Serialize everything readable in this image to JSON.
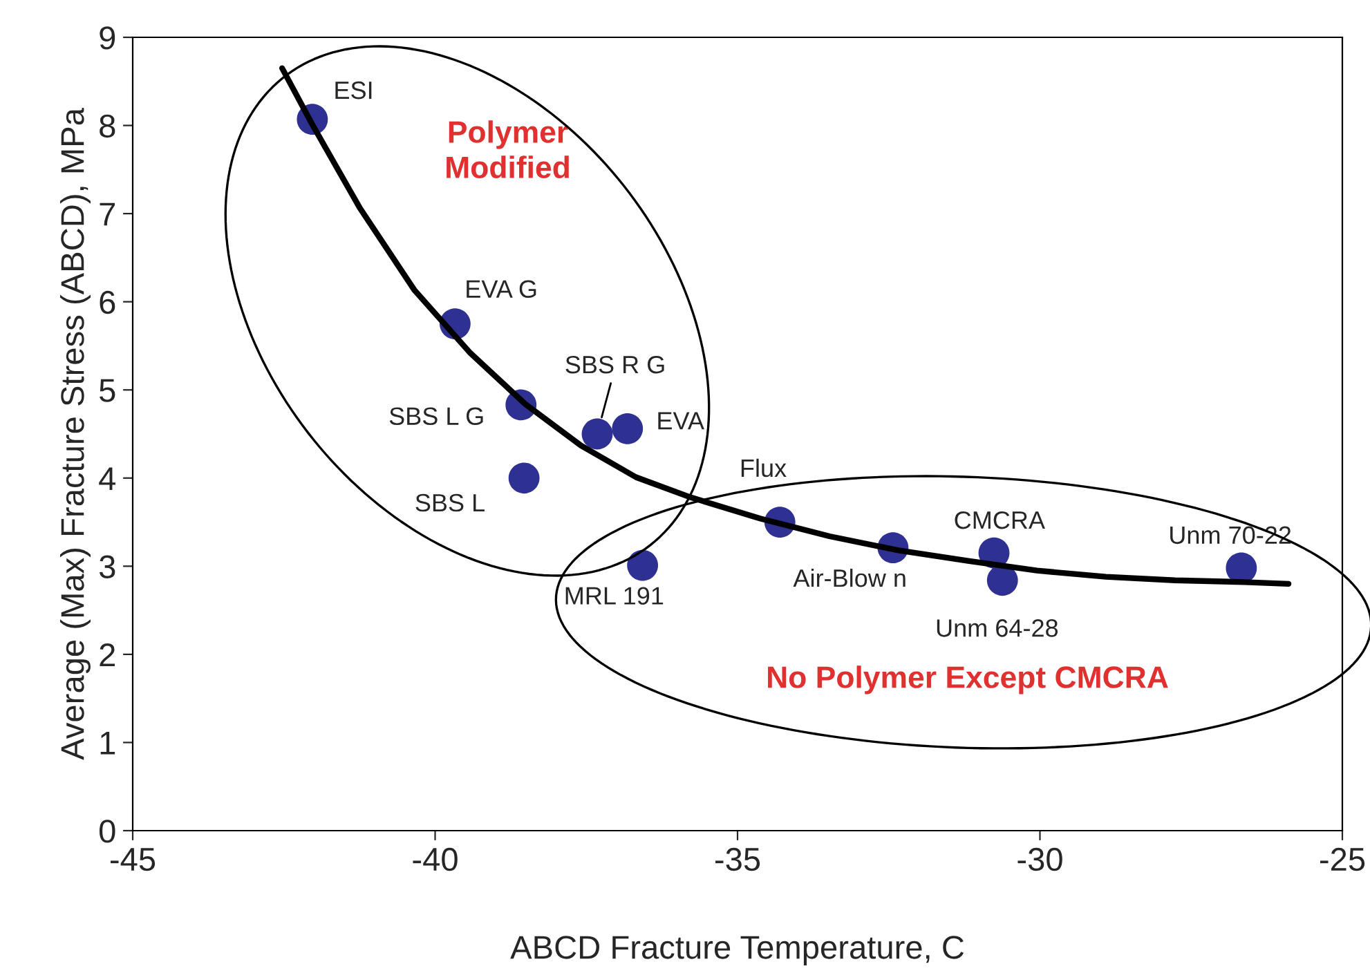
{
  "chart_data": {
    "type": "scatter",
    "xlabel": "ABCD Fracture Temperature, C",
    "ylabel": "Average (Max) Fracture Stress (ABCD), MPa",
    "xlim": [
      -45,
      -25
    ],
    "ylim": [
      0,
      9
    ],
    "xticks": [
      -45,
      -40,
      -35,
      -30,
      -25
    ],
    "yticks": [
      0,
      1,
      2,
      3,
      4,
      5,
      6,
      7,
      8,
      9
    ],
    "grid": false,
    "legend": false,
    "marker": "circle",
    "series": [
      {
        "color": "#2e3192",
        "x": [
          -42.03,
          -39.67,
          -38.58,
          -38.53,
          -37.32,
          -36.82,
          -36.57,
          -34.3,
          -32.43,
          -30.76,
          -30.62,
          -26.67
        ],
        "values": [
          8.07,
          5.75,
          4.83,
          4.0,
          4.5,
          4.56,
          3.01,
          3.5,
          3.21,
          3.15,
          2.84,
          2.98
        ]
      },
      {
        "type": "line",
        "color": "#000000",
        "line_style": "solid",
        "marker": "none",
        "x": [
          -42.53,
          -42.03,
          -41.25,
          -40.34,
          -39.42,
          -38.51,
          -37.59,
          -36.68,
          -35.77,
          -34.62,
          -33.48,
          -32.34,
          -31.19,
          -30.05,
          -28.91,
          -27.77,
          -26.62,
          -25.89
        ],
        "values": [
          8.65,
          8.01,
          7.07,
          6.13,
          5.42,
          4.84,
          4.37,
          4.01,
          3.78,
          3.54,
          3.34,
          3.18,
          3.06,
          2.95,
          2.88,
          2.84,
          2.82,
          2.8
        ]
      }
    ],
    "annotations": [
      {
        "text": "ESI",
        "x": -42.03,
        "y": 8.07
      },
      {
        "text": "EVA G",
        "x": -39.67,
        "y": 5.75
      },
      {
        "text": "SBS L G",
        "x": -38.58,
        "y": 4.83
      },
      {
        "text": "SBS L",
        "x": -38.53,
        "y": 4.0
      },
      {
        "text": "SBS R G",
        "x": -37.32,
        "y": 4.5
      },
      {
        "text": "EVA",
        "x": -36.82,
        "y": 4.56
      },
      {
        "text": "MRL 191",
        "x": -36.57,
        "y": 3.01
      },
      {
        "text": "Flux",
        "x": -34.3,
        "y": 3.5
      },
      {
        "text": "Air-Blow n",
        "x": -32.43,
        "y": 3.21
      },
      {
        "text": "CMCRA",
        "x": -30.76,
        "y": 3.15
      },
      {
        "text": "Unm 64-28",
        "x": -30.62,
        "y": 2.84
      },
      {
        "text": "Unm 70-22",
        "x": -26.67,
        "y": 2.98
      },
      "Polymer\nModified",
      "No Polymer Except CMCRA"
    ]
  }
}
